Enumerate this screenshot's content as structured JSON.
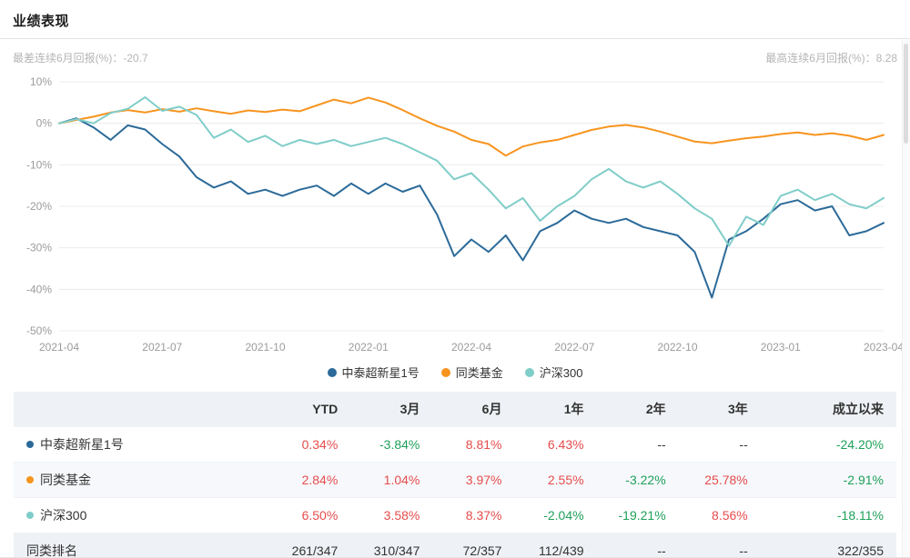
{
  "page": {
    "title": "业绩表现"
  },
  "stats": {
    "worst_label": "最差连续6月回报(%)：",
    "worst_value": "-20.7",
    "best_label": "最高连续6月回报(%)：",
    "best_value": "8.28"
  },
  "colors": {
    "positive": "#e64c4c",
    "negative": "#1fa05a",
    "neutral": "#333333",
    "axis_text": "#9b9b9b",
    "grid": "#ececec"
  },
  "chart_data": {
    "type": "line",
    "title": "",
    "xlabel": "",
    "ylabel": "",
    "ylim": [
      -50,
      10
    ],
    "grid": true,
    "legend_position": "bottom",
    "y_ticks": [
      {
        "value": 10,
        "label": "10%"
      },
      {
        "value": 0,
        "label": "0%"
      },
      {
        "value": -10,
        "label": "-10%"
      },
      {
        "value": -20,
        "label": "-20%"
      },
      {
        "value": -30,
        "label": "-30%"
      },
      {
        "value": -40,
        "label": "-40%"
      },
      {
        "value": -50,
        "label": "-50%"
      }
    ],
    "x_labels": [
      "2021-04",
      "2021-07",
      "2021-10",
      "2022-01",
      "2022-04",
      "2022-07",
      "2022-10",
      "2023-01",
      "2023-04"
    ],
    "series": [
      {
        "name": "中泰超新星1号",
        "color": "#2b6a99",
        "values": [
          0,
          1.2,
          -1,
          -4,
          -0.5,
          -1.5,
          -5,
          -8,
          -13,
          -15.5,
          -14,
          -17,
          -16,
          -17.5,
          -16,
          -15,
          -17.5,
          -14.5,
          -17,
          -14.5,
          -16.5,
          -15,
          -22,
          -32,
          -28,
          -31,
          -27,
          -33,
          -26,
          -24,
          -21,
          -23,
          -24,
          -23,
          -25,
          -26,
          -27,
          -31,
          -42,
          -28,
          -26,
          -23,
          -19.5,
          -18.5,
          -21,
          -20,
          -27,
          -26,
          -24
        ]
      },
      {
        "name": "同类基金",
        "color": "#f7941e",
        "values": [
          0,
          0.8,
          1.6,
          2.6,
          3.2,
          2.6,
          3.4,
          2.8,
          3.6,
          2.9,
          2.3,
          3.1,
          2.7,
          3.3,
          2.9,
          4.3,
          5.7,
          4.8,
          6.2,
          5.0,
          3.2,
          1.2,
          -0.6,
          -2.0,
          -4.0,
          -5.0,
          -7.8,
          -5.6,
          -4.6,
          -4.0,
          -2.8,
          -1.6,
          -0.8,
          -0.4,
          -1.0,
          -2.0,
          -3.2,
          -4.4,
          -4.8,
          -4.2,
          -3.6,
          -3.2,
          -2.6,
          -2.2,
          -2.8,
          -2.4,
          -3.0,
          -4.0,
          -2.8
        ]
      },
      {
        "name": "沪深300",
        "color": "#7fcdc9",
        "values": [
          0,
          1.0,
          0.0,
          2.5,
          3.5,
          6.3,
          3.0,
          4.0,
          2.0,
          -3.5,
          -1.5,
          -4.5,
          -3.0,
          -5.5,
          -4.0,
          -5.0,
          -4.0,
          -5.5,
          -4.5,
          -3.5,
          -5.0,
          -7.0,
          -9.0,
          -13.5,
          -12.0,
          -16.0,
          -20.5,
          -18.0,
          -23.5,
          -20.0,
          -17.5,
          -13.5,
          -11.0,
          -14.0,
          -15.5,
          -14.0,
          -17.0,
          -20.5,
          -23.0,
          -29.5,
          -22.5,
          -24.5,
          -17.5,
          -16.0,
          -18.5,
          -17.0,
          -19.5,
          -20.5,
          -18.0
        ]
      }
    ]
  },
  "table": {
    "headers": [
      "",
      "YTD",
      "3月",
      "6月",
      "1年",
      "2年",
      "3年",
      "成立以来"
    ],
    "rows": [
      {
        "name": "中泰超新星1号",
        "dot_color": "#2b6a99",
        "cells": [
          {
            "text": "0.34%",
            "tone": "up"
          },
          {
            "text": "-3.84%",
            "tone": "down"
          },
          {
            "text": "8.81%",
            "tone": "up"
          },
          {
            "text": "6.43%",
            "tone": "up"
          },
          {
            "text": "--",
            "tone": "flat"
          },
          {
            "text": "--",
            "tone": "flat"
          },
          {
            "text": "-24.20%",
            "tone": "down"
          }
        ]
      },
      {
        "name": "同类基金",
        "dot_color": "#f7941e",
        "cells": [
          {
            "text": "2.84%",
            "tone": "up"
          },
          {
            "text": "1.04%",
            "tone": "up"
          },
          {
            "text": "3.97%",
            "tone": "up"
          },
          {
            "text": "2.55%",
            "tone": "up"
          },
          {
            "text": "-3.22%",
            "tone": "down"
          },
          {
            "text": "25.78%",
            "tone": "up"
          },
          {
            "text": "-2.91%",
            "tone": "down"
          }
        ]
      },
      {
        "name": "沪深300",
        "dot_color": "#7fcdc9",
        "cells": [
          {
            "text": "6.50%",
            "tone": "up"
          },
          {
            "text": "3.58%",
            "tone": "up"
          },
          {
            "text": "8.37%",
            "tone": "up"
          },
          {
            "text": "-2.04%",
            "tone": "down"
          },
          {
            "text": "-19.21%",
            "tone": "down"
          },
          {
            "text": "8.56%",
            "tone": "up"
          },
          {
            "text": "-18.11%",
            "tone": "down"
          }
        ]
      },
      {
        "name": "同类排名",
        "dot_color": null,
        "cells": [
          {
            "text": "261/347",
            "tone": "flat"
          },
          {
            "text": "310/347",
            "tone": "flat"
          },
          {
            "text": "72/357",
            "tone": "flat"
          },
          {
            "text": "112/439",
            "tone": "flat"
          },
          {
            "text": "--",
            "tone": "flat"
          },
          {
            "text": "--",
            "tone": "flat"
          },
          {
            "text": "322/355",
            "tone": "flat"
          }
        ]
      }
    ]
  }
}
